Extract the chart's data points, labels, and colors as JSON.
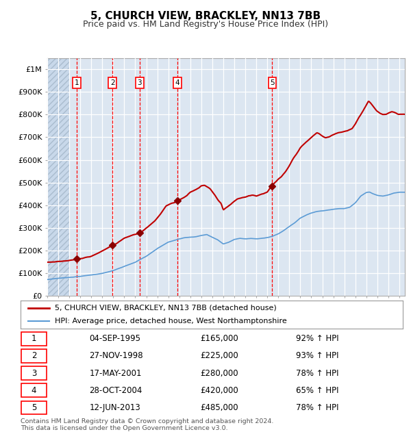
{
  "title": "5, CHURCH VIEW, BRACKLEY, NN13 7BB",
  "subtitle": "Price paid vs. HM Land Registry's House Price Index (HPI)",
  "footer": "Contains HM Land Registry data © Crown copyright and database right 2024.\nThis data is licensed under the Open Government Licence v3.0.",
  "legend_line1": "5, CHURCH VIEW, BRACKLEY, NN13 7BB (detached house)",
  "legend_line2": "HPI: Average price, detached house, West Northamptonshire",
  "sale_times": [
    1995.67,
    1998.92,
    2001.38,
    2004.83,
    2013.45
  ],
  "sale_prices": [
    165000,
    225000,
    280000,
    420000,
    485000
  ],
  "sale_labels": [
    "1",
    "2",
    "3",
    "4",
    "5"
  ],
  "sale_table": [
    [
      "1",
      "04-SEP-1995",
      "£165,000",
      "92% ↑ HPI"
    ],
    [
      "2",
      "27-NOV-1998",
      "£225,000",
      "93% ↑ HPI"
    ],
    [
      "3",
      "17-MAY-2001",
      "£280,000",
      "78% ↑ HPI"
    ],
    [
      "4",
      "28-OCT-2004",
      "£420,000",
      "65% ↑ HPI"
    ],
    [
      "5",
      "12-JUN-2013",
      "£485,000",
      "78% ↑ HPI"
    ]
  ],
  "hpi_color": "#5b9bd5",
  "price_color": "#c00000",
  "marker_color": "#8b0000",
  "vline_color": "#ff0000",
  "background_color": "#dce6f1",
  "grid_color": "#ffffff",
  "xlim": [
    1993.0,
    2025.5
  ],
  "ylim": [
    0,
    1050000
  ],
  "yticks": [
    0,
    100000,
    200000,
    300000,
    400000,
    500000,
    600000,
    700000,
    800000,
    900000,
    1000000
  ],
  "ytick_labels": [
    "£0",
    "£100K",
    "£200K",
    "£300K",
    "£400K",
    "£500K",
    "£600K",
    "£700K",
    "£800K",
    "£900K",
    "£1M"
  ],
  "hpi_keypoints": [
    [
      1993.0,
      72000
    ],
    [
      1994.0,
      78000
    ],
    [
      1995.0,
      82000
    ],
    [
      1996.0,
      87000
    ],
    [
      1997.0,
      93000
    ],
    [
      1998.0,
      100000
    ],
    [
      1999.0,
      112000
    ],
    [
      2000.0,
      130000
    ],
    [
      2001.0,
      148000
    ],
    [
      2002.0,
      175000
    ],
    [
      2003.0,
      210000
    ],
    [
      2004.0,
      238000
    ],
    [
      2005.0,
      252000
    ],
    [
      2005.5,
      258000
    ],
    [
      2006.0,
      260000
    ],
    [
      2006.5,
      262000
    ],
    [
      2007.0,
      268000
    ],
    [
      2007.5,
      272000
    ],
    [
      2008.0,
      260000
    ],
    [
      2008.5,
      248000
    ],
    [
      2009.0,
      230000
    ],
    [
      2009.5,
      238000
    ],
    [
      2010.0,
      250000
    ],
    [
      2010.5,
      255000
    ],
    [
      2011.0,
      252000
    ],
    [
      2011.5,
      255000
    ],
    [
      2012.0,
      253000
    ],
    [
      2012.5,
      255000
    ],
    [
      2013.0,
      258000
    ],
    [
      2013.5,
      265000
    ],
    [
      2014.0,
      275000
    ],
    [
      2014.5,
      290000
    ],
    [
      2015.0,
      308000
    ],
    [
      2015.5,
      325000
    ],
    [
      2016.0,
      345000
    ],
    [
      2016.5,
      358000
    ],
    [
      2017.0,
      368000
    ],
    [
      2017.5,
      375000
    ],
    [
      2018.0,
      378000
    ],
    [
      2018.5,
      382000
    ],
    [
      2019.0,
      385000
    ],
    [
      2019.5,
      388000
    ],
    [
      2020.0,
      388000
    ],
    [
      2020.5,
      395000
    ],
    [
      2021.0,
      415000
    ],
    [
      2021.5,
      445000
    ],
    [
      2022.0,
      460000
    ],
    [
      2022.3,
      462000
    ],
    [
      2022.6,
      455000
    ],
    [
      2023.0,
      448000
    ],
    [
      2023.5,
      445000
    ],
    [
      2024.0,
      450000
    ],
    [
      2024.5,
      458000
    ],
    [
      2025.0,
      462000
    ],
    [
      2025.5,
      462000
    ]
  ],
  "prop_keypoints": [
    [
      1993.0,
      148000
    ],
    [
      1994.0,
      152000
    ],
    [
      1995.0,
      157000
    ],
    [
      1995.67,
      165000
    ],
    [
      1996.0,
      168000
    ],
    [
      1997.0,
      178000
    ],
    [
      1998.0,
      200000
    ],
    [
      1998.92,
      225000
    ],
    [
      1999.3,
      235000
    ],
    [
      2000.0,
      258000
    ],
    [
      2000.8,
      272000
    ],
    [
      2001.38,
      280000
    ],
    [
      2001.7,
      290000
    ],
    [
      2002.3,
      315000
    ],
    [
      2002.8,
      335000
    ],
    [
      2003.3,
      365000
    ],
    [
      2003.8,
      400000
    ],
    [
      2004.3,
      412000
    ],
    [
      2004.83,
      420000
    ],
    [
      2005.0,
      428000
    ],
    [
      2005.3,
      435000
    ],
    [
      2005.7,
      448000
    ],
    [
      2006.0,
      462000
    ],
    [
      2006.5,
      472000
    ],
    [
      2006.8,
      480000
    ],
    [
      2007.0,
      488000
    ],
    [
      2007.3,
      490000
    ],
    [
      2007.5,
      484000
    ],
    [
      2007.8,
      475000
    ],
    [
      2008.2,
      448000
    ],
    [
      2008.5,
      425000
    ],
    [
      2008.8,
      408000
    ],
    [
      2009.0,
      378000
    ],
    [
      2009.3,
      388000
    ],
    [
      2009.6,
      400000
    ],
    [
      2010.0,
      415000
    ],
    [
      2010.3,
      425000
    ],
    [
      2010.7,
      430000
    ],
    [
      2011.0,
      432000
    ],
    [
      2011.3,
      438000
    ],
    [
      2011.7,
      440000
    ],
    [
      2012.0,
      435000
    ],
    [
      2012.3,
      442000
    ],
    [
      2012.7,
      448000
    ],
    [
      2013.0,
      455000
    ],
    [
      2013.45,
      485000
    ],
    [
      2013.7,
      498000
    ],
    [
      2014.0,
      512000
    ],
    [
      2014.3,
      525000
    ],
    [
      2014.7,
      548000
    ],
    [
      2015.0,
      572000
    ],
    [
      2015.3,
      600000
    ],
    [
      2015.7,
      628000
    ],
    [
      2016.0,
      652000
    ],
    [
      2016.3,
      668000
    ],
    [
      2016.7,
      685000
    ],
    [
      2017.0,
      698000
    ],
    [
      2017.3,
      710000
    ],
    [
      2017.5,
      718000
    ],
    [
      2017.7,
      715000
    ],
    [
      2018.0,
      705000
    ],
    [
      2018.3,
      698000
    ],
    [
      2018.7,
      705000
    ],
    [
      2019.0,
      712000
    ],
    [
      2019.3,
      718000
    ],
    [
      2019.7,
      722000
    ],
    [
      2020.0,
      725000
    ],
    [
      2020.3,
      728000
    ],
    [
      2020.7,
      738000
    ],
    [
      2021.0,
      758000
    ],
    [
      2021.3,
      785000
    ],
    [
      2021.7,
      815000
    ],
    [
      2022.0,
      840000
    ],
    [
      2022.2,
      858000
    ],
    [
      2022.4,
      848000
    ],
    [
      2022.6,
      835000
    ],
    [
      2022.8,
      822000
    ],
    [
      2023.0,
      812000
    ],
    [
      2023.2,
      805000
    ],
    [
      2023.5,
      798000
    ],
    [
      2023.8,
      800000
    ],
    [
      2024.0,
      805000
    ],
    [
      2024.3,
      812000
    ],
    [
      2024.6,
      808000
    ],
    [
      2024.9,
      800000
    ],
    [
      2025.2,
      800000
    ]
  ]
}
